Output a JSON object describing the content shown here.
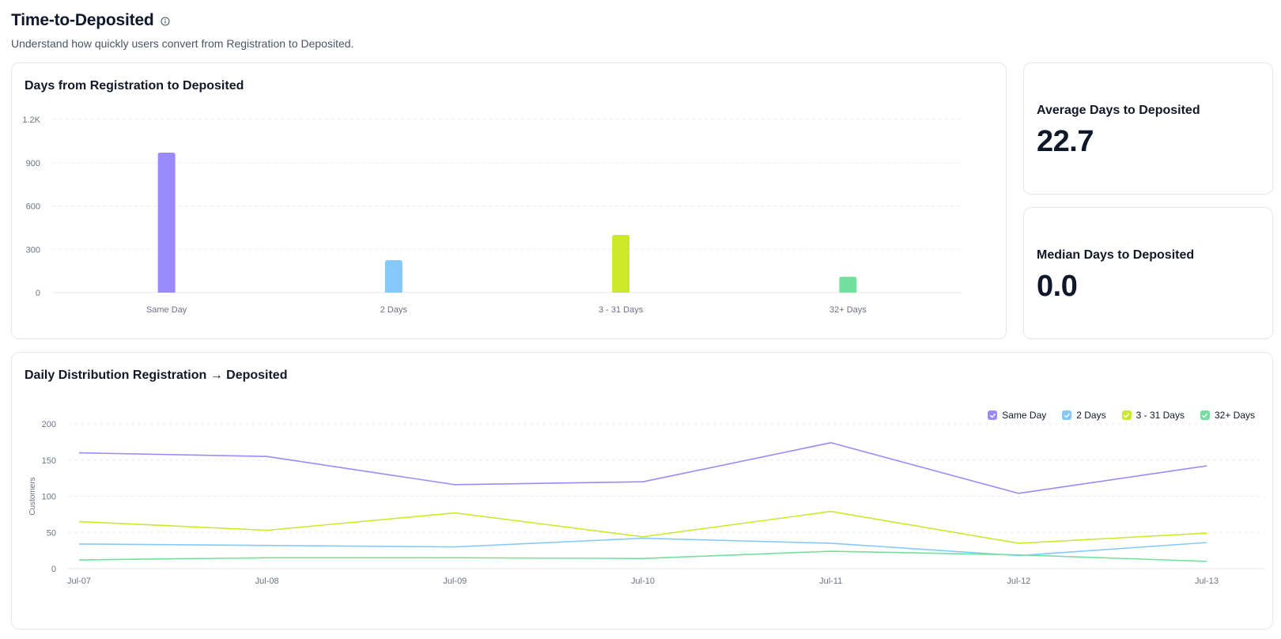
{
  "header": {
    "title": "Time-to-Deposited",
    "subtitle": "Understand how quickly users convert from Registration to Deposited."
  },
  "icons": {
    "info": "info-circle-icon",
    "check": "check-icon"
  },
  "colors": {
    "same_day": "#9b8afb",
    "two_days": "#85c9fb",
    "three_31_days": "#cbe92a",
    "thirty_two_plus": "#74e0a0",
    "grid": "#e5e7eb",
    "axis_text": "#6b7280"
  },
  "stats": {
    "average": {
      "label": "Average Days to Deposited",
      "value": "22.7"
    },
    "median": {
      "label": "Median Days to Deposited",
      "value": "0.0"
    }
  },
  "chart_data": [
    {
      "type": "bar",
      "title": "Days from Registration to Deposited",
      "categories": [
        "Same Day",
        "2 Days",
        "3 - 31 Days",
        "32+ Days"
      ],
      "values": [
        970,
        225,
        400,
        110
      ],
      "ylim": [
        0,
        1200
      ],
      "yticks": [
        0,
        300,
        600,
        900,
        1200
      ],
      "ytick_labels": [
        "0",
        "300",
        "600",
        "900",
        "1.2K"
      ],
      "xlabel": "",
      "ylabel": "",
      "grid": true
    },
    {
      "type": "line",
      "title": "Daily Distribution Registration → Deposited",
      "x": [
        "Jul-07",
        "Jul-08",
        "Jul-09",
        "Jul-10",
        "Jul-11",
        "Jul-12",
        "Jul-13"
      ],
      "series": [
        {
          "name": "Same Day",
          "values": [
            160,
            155,
            116,
            120,
            174,
            104,
            142
          ]
        },
        {
          "name": "2 Days",
          "values": [
            34,
            32,
            30,
            42,
            35,
            18,
            36
          ]
        },
        {
          "name": "3 - 31 Days",
          "values": [
            65,
            53,
            77,
            44,
            79,
            35,
            49
          ]
        },
        {
          "name": "32+ Days",
          "values": [
            12,
            15,
            15,
            14,
            24,
            19,
            10
          ]
        }
      ],
      "ylim": [
        0,
        200
      ],
      "yticks": [
        0,
        50,
        100,
        150,
        200
      ],
      "ylabel": "Customers",
      "xlabel": "",
      "legend": "top-right",
      "grid": true
    }
  ]
}
